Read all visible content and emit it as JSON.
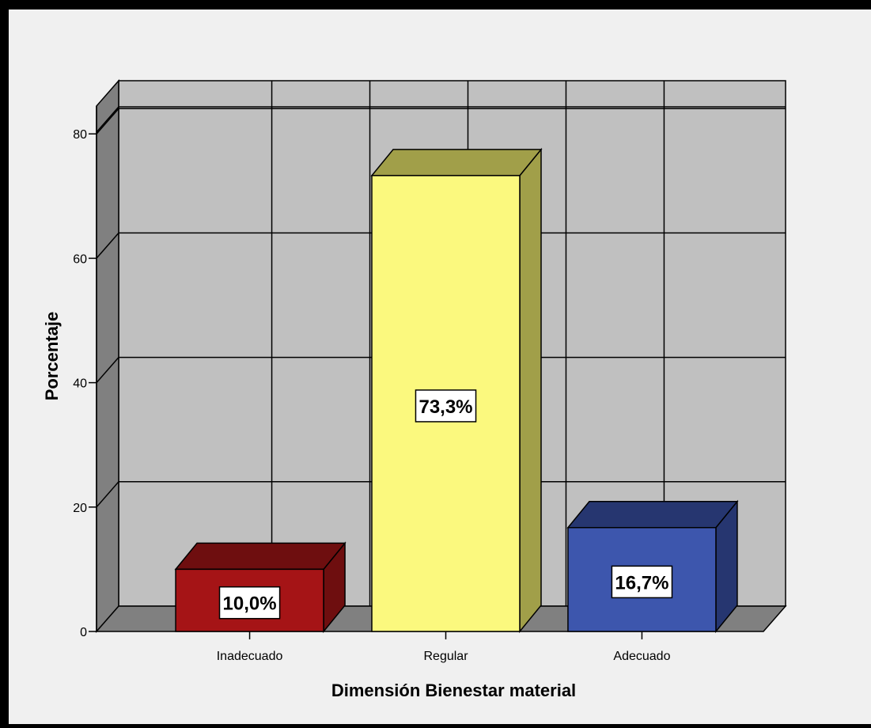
{
  "chart_data": {
    "type": "bar",
    "categories": [
      "Inadecuado",
      "Regular",
      "Adecuado"
    ],
    "values": [
      10.0,
      73.3,
      16.7
    ],
    "data_labels": [
      "10,0%",
      "73,3%",
      "16,7%"
    ],
    "title": "",
    "xlabel": "Dimensión Bienestar material",
    "ylabel": "Porcentaje",
    "ylim": [
      0,
      85
    ],
    "yticks": [
      0,
      20,
      40,
      60,
      80
    ],
    "grid": true,
    "style": "3d",
    "colors": {
      "Inadecuado": {
        "front": "#a51416",
        "side": "#6e0e0f",
        "top": "#6e0e0f"
      },
      "Regular": {
        "front": "#fbf97e",
        "side": "#a19f49",
        "top": "#a19f49"
      },
      "Adecuado": {
        "front": "#3d56ad",
        "side": "#263670",
        "top": "#263670"
      }
    },
    "wall_color": "#c0c0c0",
    "floor_color": "#808080"
  }
}
